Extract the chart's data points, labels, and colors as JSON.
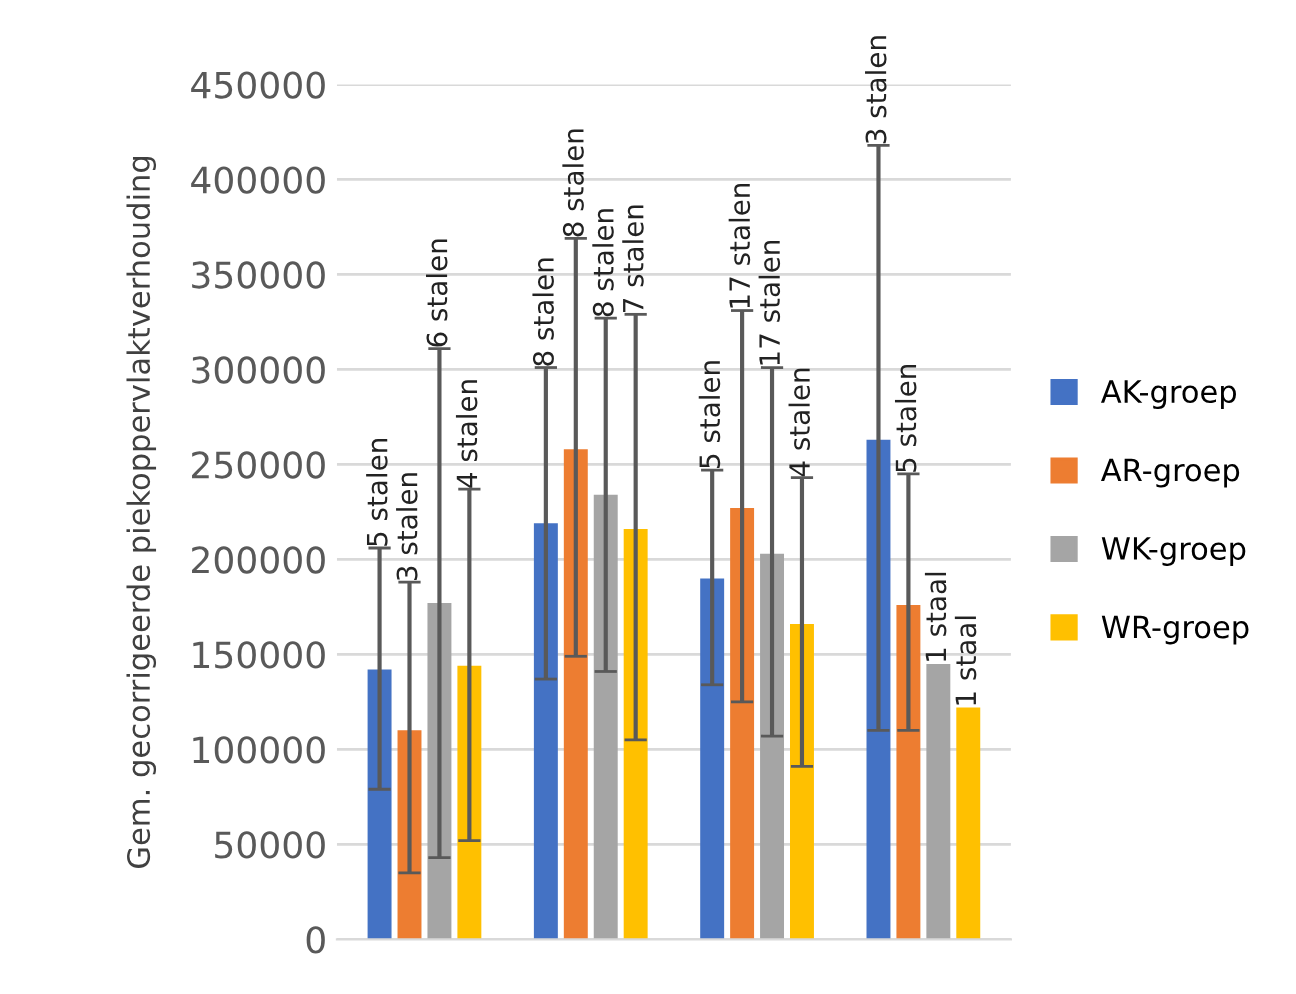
{
  "chart_data": {
    "type": "bar",
    "ylabel": "Gem. gecorrigeerde piekoppervlaktverhouding",
    "categories": [
      null,
      null,
      null,
      null
    ],
    "series": [
      {
        "name": "AK-groep",
        "color": "#4472c4",
        "values": [
          142000,
          219000,
          190000,
          263000
        ],
        "errors": [
          [
            79000,
            206000
          ],
          [
            137000,
            301000
          ],
          [
            134000,
            247000
          ],
          [
            110000,
            418000
          ]
        ]
      },
      {
        "name": "AR-groep",
        "color": "#ed7d31",
        "values": [
          110000,
          258000,
          227000,
          176000
        ],
        "errors": [
          [
            35000,
            188000
          ],
          [
            149000,
            369000
          ],
          [
            125000,
            331000
          ],
          [
            110000,
            245000
          ]
        ]
      },
      {
        "name": "WK-groep",
        "color": "#a5a5a5",
        "values": [
          177000,
          234000,
          203000,
          145000
        ],
        "errors": [
          [
            43000,
            311000
          ],
          [
            141000,
            327000
          ],
          [
            107000,
            301000
          ],
          null
        ]
      },
      {
        "name": "WR-groep",
        "color": "#ffc000",
        "values": [
          144000,
          216000,
          166000,
          122000
        ],
        "errors": [
          [
            52000,
            237000
          ],
          [
            105000,
            329000
          ],
          [
            91000,
            243000
          ],
          null
        ]
      }
    ],
    "annotations": [
      {
        "text": "5 stalen",
        "y": 206000
      },
      {
        "text": "8 stalen",
        "y": 301000
      },
      {
        "text": "5 stalen",
        "y": 247000
      },
      {
        "text": "3 stalen",
        "y": 418000
      },
      {
        "text": "3 stalen",
        "y": 188000
      },
      {
        "text": "8 stalen",
        "y": 369000
      },
      {
        "text": "17 stalen",
        "y": 331000
      },
      {
        "text": "5 stalen",
        "y": 245000
      },
      {
        "text": "6 stalen",
        "y": 311000
      },
      {
        "text": "8 stalen",
        "y": 327000
      },
      {
        "text": "17 stalen",
        "y": 301000
      },
      {
        "text": "1 staal",
        "y": 145000
      },
      {
        "text": "4 stalen",
        "y": 237000
      },
      {
        "text": "7 stalen",
        "y": 329000
      },
      {
        "text": "4 stalen",
        "y": 243000
      },
      {
        "text": "1 staal",
        "y": 122000
      }
    ],
    "ylim": [
      0,
      450000
    ],
    "yticks": [
      0,
      50000,
      100000,
      150000,
      200000,
      250000,
      300000,
      350000,
      400000,
      450000
    ],
    "grid": "y",
    "legend": "right"
  }
}
